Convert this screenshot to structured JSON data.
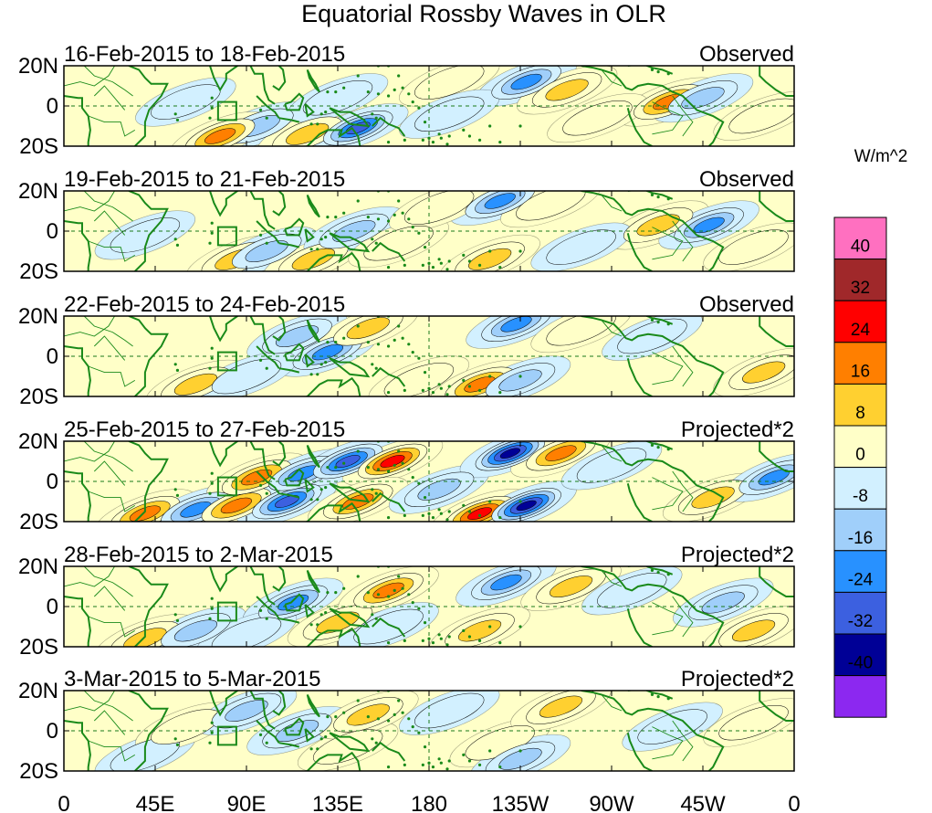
{
  "chart_data": {
    "type": "heatmap",
    "title": "Equatorial Rossby Waves in OLR",
    "units_label": "W/m^2",
    "longitude_range": [
      0,
      360
    ],
    "latitude_range": [
      -20,
      20
    ],
    "x_ticks": [
      {
        "lon": 0,
        "label": "0"
      },
      {
        "lon": 45,
        "label": "45E"
      },
      {
        "lon": 90,
        "label": "90E"
      },
      {
        "lon": 135,
        "label": "135E"
      },
      {
        "lon": 180,
        "label": "180"
      },
      {
        "lon": 225,
        "label": "135W"
      },
      {
        "lon": 270,
        "label": "90W"
      },
      {
        "lon": 315,
        "label": "45W"
      },
      {
        "lon": 360,
        "label": "0"
      }
    ],
    "y_ticks": [
      {
        "lat": 20,
        "label": "20N"
      },
      {
        "lat": 0,
        "label": "0"
      },
      {
        "lat": -20,
        "label": "20S"
      }
    ],
    "colorbar": {
      "levels": [
        "40",
        "32",
        "24",
        "16",
        "8",
        "0",
        "-8",
        "-16",
        "-24",
        "-32",
        "-40"
      ],
      "colors": [
        "#ff70c0",
        "#a0282a",
        "#ff0000",
        "#ff7f00",
        "#ffd030",
        "#ffffc8",
        "#d2f0ff",
        "#a0cffa",
        "#2891ff",
        "#3c60e0",
        "#000096",
        "#8c28f0"
      ]
    },
    "panels": [
      {
        "date_range": "16-Feb-2015 to 18-Feb-2015",
        "kind": "Observed",
        "blobs": [
          {
            "lon": 60,
            "lat": 2,
            "value": -8
          },
          {
            "lon": 96,
            "lat": -10,
            "value": -16
          },
          {
            "lon": 120,
            "lat": -14,
            "value": 16
          },
          {
            "lon": 145,
            "lat": -11,
            "value": -32
          },
          {
            "lon": 135,
            "lat": 4,
            "value": -8
          },
          {
            "lon": 190,
            "lat": 12,
            "value": 8
          },
          {
            "lon": 228,
            "lat": 12,
            "value": -24
          },
          {
            "lon": 248,
            "lat": 8,
            "value": 16
          },
          {
            "lon": 190,
            "lat": -4,
            "value": -8
          },
          {
            "lon": 298,
            "lat": 2,
            "value": 24
          },
          {
            "lon": 77,
            "lat": -15,
            "value": 24
          },
          {
            "lon": 263,
            "lat": -6,
            "value": 8
          },
          {
            "lon": 315,
            "lat": 4,
            "value": -16
          },
          {
            "lon": 345,
            "lat": -5,
            "value": 8
          }
        ]
      },
      {
        "date_range": "19-Feb-2015 to 21-Feb-2015",
        "kind": "Observed",
        "blobs": [
          {
            "lon": 40,
            "lat": -2,
            "value": -8
          },
          {
            "lon": 85,
            "lat": -14,
            "value": 16
          },
          {
            "lon": 100,
            "lat": -10,
            "value": -16
          },
          {
            "lon": 123,
            "lat": -14,
            "value": 16
          },
          {
            "lon": 143,
            "lat": 0,
            "value": -16
          },
          {
            "lon": 165,
            "lat": -6,
            "value": 8
          },
          {
            "lon": 215,
            "lat": 15,
            "value": -24
          },
          {
            "lon": 240,
            "lat": 14,
            "value": 8
          },
          {
            "lon": 185,
            "lat": 12,
            "value": 8
          },
          {
            "lon": 210,
            "lat": -14,
            "value": 16
          },
          {
            "lon": 293,
            "lat": 3,
            "value": 16
          },
          {
            "lon": 318,
            "lat": 3,
            "value": -24
          },
          {
            "lon": 255,
            "lat": -8,
            "value": -8
          },
          {
            "lon": 340,
            "lat": -8,
            "value": 8
          }
        ]
      },
      {
        "date_range": "22-Feb-2015 to 24-Feb-2015",
        "kind": "Observed",
        "blobs": [
          {
            "lon": 65,
            "lat": -14,
            "value": 16
          },
          {
            "lon": 115,
            "lat": 10,
            "value": -16
          },
          {
            "lon": 130,
            "lat": 2,
            "value": -24
          },
          {
            "lon": 150,
            "lat": 14,
            "value": 16
          },
          {
            "lon": 175,
            "lat": -12,
            "value": 8
          },
          {
            "lon": 205,
            "lat": -14,
            "value": 24
          },
          {
            "lon": 223,
            "lat": 16,
            "value": -24
          },
          {
            "lon": 225,
            "lat": -12,
            "value": -16
          },
          {
            "lon": 255,
            "lat": 14,
            "value": 8
          },
          {
            "lon": 290,
            "lat": 10,
            "value": -8
          },
          {
            "lon": 345,
            "lat": -8,
            "value": 16
          },
          {
            "lon": 90,
            "lat": -10,
            "value": -8
          }
        ]
      },
      {
        "date_range": "25-Feb-2015 to 27-Feb-2015",
        "kind": "Projected*2",
        "blobs": [
          {
            "lon": 40,
            "lat": -16,
            "value": 24
          },
          {
            "lon": 65,
            "lat": -14,
            "value": -24
          },
          {
            "lon": 85,
            "lat": -12,
            "value": 24
          },
          {
            "lon": 110,
            "lat": -10,
            "value": -32
          },
          {
            "lon": 95,
            "lat": 2,
            "value": 24
          },
          {
            "lon": 118,
            "lat": 4,
            "value": -24
          },
          {
            "lon": 140,
            "lat": 10,
            "value": -32
          },
          {
            "lon": 162,
            "lat": 10,
            "value": 32
          },
          {
            "lon": 145,
            "lat": -10,
            "value": 24
          },
          {
            "lon": 185,
            "lat": -4,
            "value": -16
          },
          {
            "lon": 205,
            "lat": -16,
            "value": 32
          },
          {
            "lon": 220,
            "lat": 14,
            "value": -40
          },
          {
            "lon": 245,
            "lat": 14,
            "value": 24
          },
          {
            "lon": 228,
            "lat": -12,
            "value": -40
          },
          {
            "lon": 270,
            "lat": 8,
            "value": -8
          },
          {
            "lon": 320,
            "lat": -8,
            "value": 16
          },
          {
            "lon": 350,
            "lat": 2,
            "value": -24
          }
        ]
      },
      {
        "date_range": "28-Feb-2015 to 2-Mar-2015",
        "kind": "Projected*2",
        "blobs": [
          {
            "lon": 40,
            "lat": -16,
            "value": 16
          },
          {
            "lon": 65,
            "lat": -12,
            "value": -16
          },
          {
            "lon": 113,
            "lat": 2,
            "value": -24
          },
          {
            "lon": 135,
            "lat": -8,
            "value": 16
          },
          {
            "lon": 160,
            "lat": 8,
            "value": 24
          },
          {
            "lon": 160,
            "lat": -10,
            "value": -8
          },
          {
            "lon": 205,
            "lat": -12,
            "value": 16
          },
          {
            "lon": 218,
            "lat": 12,
            "value": -24
          },
          {
            "lon": 250,
            "lat": 10,
            "value": 16
          },
          {
            "lon": 280,
            "lat": 8,
            "value": -8
          },
          {
            "lon": 325,
            "lat": 2,
            "value": -16
          },
          {
            "lon": 340,
            "lat": -12,
            "value": 16
          },
          {
            "lon": 90,
            "lat": -14,
            "value": -8
          }
        ]
      },
      {
        "date_range": "3-Mar-2015 to 5-Mar-2015",
        "kind": "Projected*2",
        "blobs": [
          {
            "lon": 40,
            "lat": -12,
            "value": -8
          },
          {
            "lon": 60,
            "lat": 2,
            "value": 8
          },
          {
            "lon": 90,
            "lat": 10,
            "value": -16
          },
          {
            "lon": 115,
            "lat": 0,
            "value": -16
          },
          {
            "lon": 140,
            "lat": -8,
            "value": 8
          },
          {
            "lon": 150,
            "lat": 8,
            "value": 16
          },
          {
            "lon": 190,
            "lat": 10,
            "value": -8
          },
          {
            "lon": 215,
            "lat": -6,
            "value": 8
          },
          {
            "lon": 245,
            "lat": 12,
            "value": 16
          },
          {
            "lon": 225,
            "lat": -14,
            "value": -16
          },
          {
            "lon": 300,
            "lat": 2,
            "value": -8
          },
          {
            "lon": 340,
            "lat": 4,
            "value": 8
          }
        ]
      }
    ]
  }
}
